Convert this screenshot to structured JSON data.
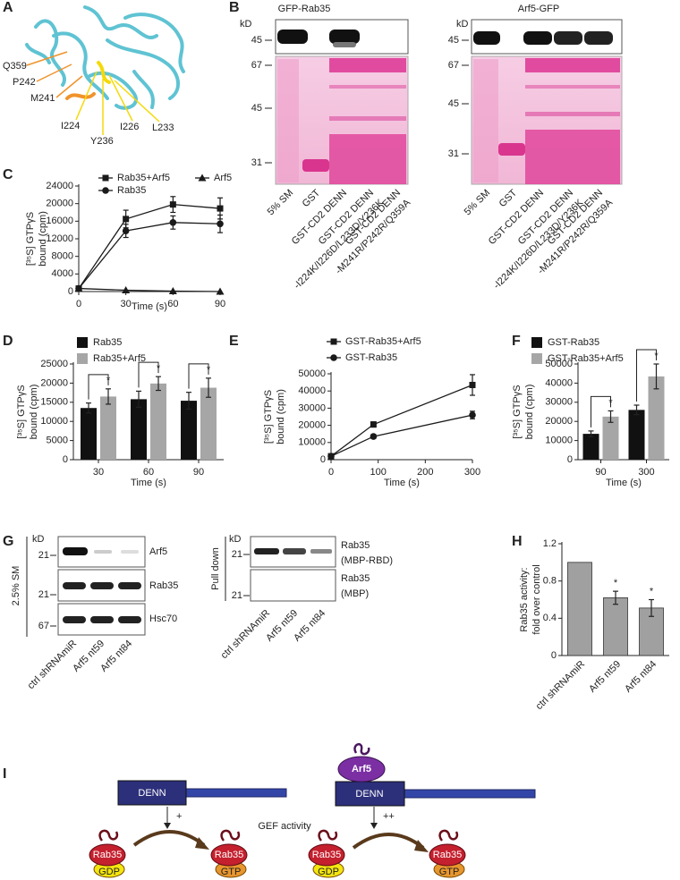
{
  "panel_labels": [
    "A",
    "B",
    "C",
    "D",
    "E",
    "F",
    "G",
    "H",
    "I"
  ],
  "panel_a": {
    "residues": [
      "Q359",
      "P242",
      "M241",
      "I224",
      "Y236",
      "I226",
      "L233"
    ]
  },
  "panel_b": {
    "kd": "kD",
    "blots": [
      {
        "title": "GFP-Rab35",
        "markers": [
          45,
          67,
          45,
          31
        ]
      },
      {
        "title": "Arf5-GFP",
        "markers": [
          45,
          67,
          45,
          31
        ]
      }
    ],
    "lanes": [
      [
        "5% SM"
      ],
      [
        "GST"
      ],
      [
        "GST-CD2 DENN"
      ],
      [
        "GST-CD2 DENN",
        "-I224K/I226D/L233D/Y236K"
      ],
      [
        "GST-CD2 DENN",
        "-M241R/P242R/Q359A"
      ]
    ]
  },
  "panel_g": {
    "kd": "kD",
    "input_label": "2.5% SM",
    "input_blots": [
      {
        "marker": 21,
        "label": "Arf5"
      },
      {
        "marker": 21,
        "label": "Rab35"
      },
      {
        "marker": 67,
        "label": "Hsc70"
      }
    ],
    "pulldown_label": "Pull down",
    "pulldown_blots": [
      {
        "marker": 21,
        "label": [
          "Rab35",
          "(MBP-RBD)"
        ]
      },
      {
        "marker": 21,
        "label": [
          "Rab35",
          "(MBP)"
        ]
      }
    ],
    "lanes": [
      "ctrl shRNAmiR",
      "Arf5 nt59",
      "Arf5 nt84"
    ]
  },
  "panel_i": {
    "domain": "DENN",
    "arf": "Arf5",
    "effect_low": "+",
    "effect_high": "++",
    "caption": "GEF activity",
    "gtpase": "Rab35",
    "gdp": "GDP",
    "gtp": "GTP"
  },
  "chart_data": [
    {
      "type": "line",
      "ylabel": [
        "[³⁵S] GTPγS",
        "bound (cpm)"
      ],
      "xlabel": "Time (s)",
      "x": [
        0,
        30,
        60,
        90
      ],
      "xlim": [
        0,
        90
      ],
      "xticks": [
        0,
        30,
        60,
        90
      ],
      "ylim": [
        0,
        24000
      ],
      "yticks": [
        0,
        4000,
        8000,
        12000,
        16000,
        20000,
        24000
      ],
      "series": [
        {
          "name": "Rab35+Arf5",
          "color": "#1a1a1a",
          "marker": "square",
          "values": [
            700,
            16500,
            19800,
            18900
          ],
          "errors": [
            null,
            2000,
            1800,
            2400
          ]
        },
        {
          "name": "Arf5",
          "color": "#1a1a1a",
          "marker": "triangle",
          "values": [
            700,
            300,
            100,
            0
          ],
          "errors": [
            null,
            null,
            null,
            null
          ]
        },
        {
          "name": "Rab35",
          "color": "#1a1a1a",
          "marker": "circle",
          "values": [
            700,
            13800,
            15700,
            15400
          ],
          "errors": [
            null,
            1500,
            1500,
            2000
          ]
        }
      ]
    },
    {
      "type": "bar",
      "ylabel": [
        "[³⁵S] GTPγS",
        "bound (cpm)"
      ],
      "xlabel": "Time (s)",
      "categories": [
        "30",
        "60",
        "90"
      ],
      "ylim": [
        0,
        25000
      ],
      "yticks": [
        0,
        5000,
        10000,
        15000,
        20000,
        25000
      ],
      "series": [
        {
          "name": "Rab35",
          "color": "#111111",
          "values": [
            13500,
            15800,
            15400
          ],
          "errors": [
            1300,
            2100,
            2200
          ]
        },
        {
          "name": "Rab35+Arf5",
          "color": "#a6a6a6",
          "values": [
            16500,
            19900,
            18800
          ],
          "errors": [
            2000,
            1800,
            2500
          ]
        }
      ],
      "annotations": [
        "*",
        "*",
        "*"
      ]
    },
    {
      "type": "line",
      "ylabel": [
        "[³⁵S] GTPγS",
        "bound (cpm)"
      ],
      "xlabel": "Time (s)",
      "x": [
        0,
        90,
        300
      ],
      "xlim": [
        0,
        300
      ],
      "xticks": [
        0,
        100,
        200,
        300
      ],
      "ylim": [
        0,
        50000
      ],
      "yticks": [
        0,
        10000,
        20000,
        30000,
        40000,
        50000
      ],
      "series": [
        {
          "name": "GST-Rab35+Arf5",
          "color": "#1a1a1a",
          "marker": "square",
          "values": [
            2000,
            20500,
            43500
          ],
          "errors": [
            null,
            1500,
            6000
          ]
        },
        {
          "name": "GST-Rab35",
          "color": "#1a1a1a",
          "marker": "circle",
          "values": [
            2000,
            13500,
            26000
          ],
          "errors": [
            null,
            1200,
            2200
          ]
        }
      ]
    },
    {
      "type": "bar",
      "ylabel": [
        "[³⁵S] GTPγS",
        "bound (cpm)"
      ],
      "xlabel": "Time (s)",
      "categories": [
        "90",
        "300"
      ],
      "ylim": [
        0,
        50000
      ],
      "yticks": [
        0,
        10000,
        20000,
        30000,
        40000,
        50000
      ],
      "series": [
        {
          "name": "GST-Rab35",
          "color": "#111111",
          "values": [
            13500,
            26000
          ],
          "errors": [
            1500,
            2500
          ]
        },
        {
          "name": "GST-Rab35+Arf5",
          "color": "#a6a6a6",
          "values": [
            22500,
            43500
          ],
          "errors": [
            3000,
            6500
          ]
        }
      ],
      "annotations": [
        "*",
        "*"
      ]
    },
    {
      "type": "bar",
      "ylabel": [
        "Rab35 activity:",
        "fold over control"
      ],
      "categories": [
        "ctrl shRNAmiR",
        "Arf5 nt59",
        "Arf5 nt84"
      ],
      "ylim": [
        0,
        1.2
      ],
      "yticks": [
        0,
        0.4,
        0.8,
        1.2
      ],
      "series": [
        {
          "color": "#a0a0a0",
          "values": [
            1,
            0.62,
            0.51
          ],
          "errors": [
            null,
            0.07,
            0.09
          ]
        }
      ],
      "annotations": [
        "*",
        "*"
      ]
    }
  ]
}
